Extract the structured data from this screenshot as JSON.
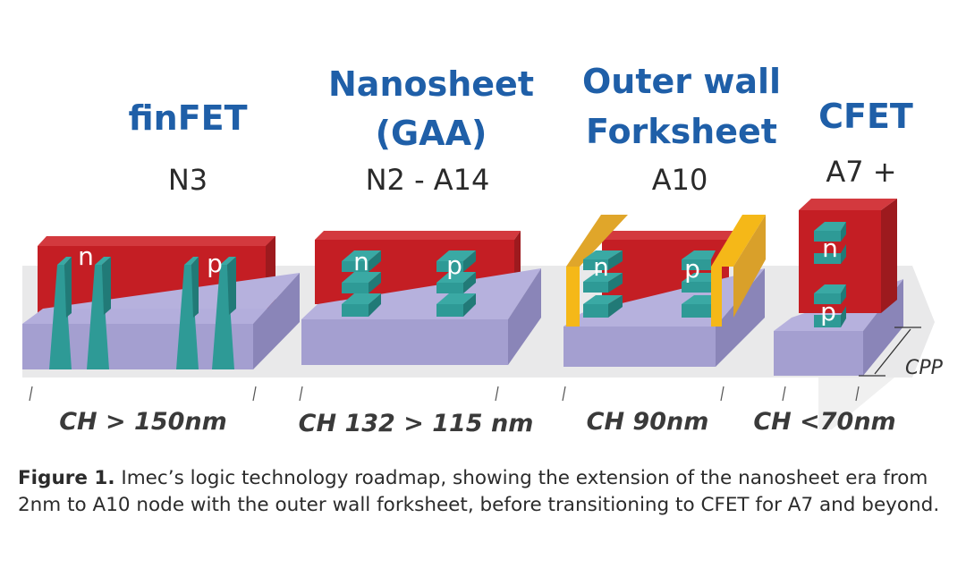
{
  "figure": {
    "columns": [
      {
        "title_lines": [
          "finFET"
        ],
        "node": "N3",
        "n_label": "n",
        "p_label": "p",
        "ch": "CH > 150nm"
      },
      {
        "title_lines": [
          "Nanosheet",
          "(GAA)"
        ],
        "node": "N2 - A14",
        "n_label": "n",
        "p_label": "p",
        "ch": "CH 132 > 115 nm"
      },
      {
        "title_lines": [
          "Outer wall",
          "Forksheet"
        ],
        "node": "A10",
        "n_label": "n",
        "p_label": "p",
        "ch": "CH 90nm"
      },
      {
        "title_lines": [
          "CFET"
        ],
        "node": "A7 +",
        "n_label": "n",
        "p_label": "p",
        "ch": "CH <70nm"
      }
    ],
    "dimension_label": "CPP",
    "colors": {
      "title_blue": "#1f5fa8",
      "gate_red": "#c41e24",
      "substrate_lavender": "#a49fd0",
      "channel_teal": "#2e9a96",
      "wall_yellow": "#f5b818"
    }
  },
  "caption": {
    "label": "Figure 1.",
    "text": " Imec’s logic technology roadmap, showing the extension of the nanosheet era from 2nm to A10 node with the outer wall forksheet, before transitioning to CFET for A7 and beyond."
  }
}
